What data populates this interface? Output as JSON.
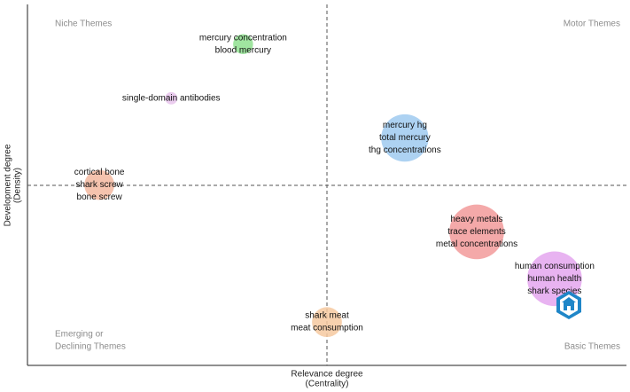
{
  "chart_data": {
    "type": "scatter",
    "title": "",
    "xlabel": [
      "Relevance degree",
      "(Centrality)"
    ],
    "ylabel": [
      "Development degree",
      "(Density)"
    ],
    "grid": false,
    "quadrants": {
      "top_left": [
        "Niche Themes"
      ],
      "top_right": [
        "Motor Themes"
      ],
      "bottom_left": [
        "Emerging or",
        "Declining Themes"
      ],
      "bottom_right": [
        "Basic Themes"
      ]
    },
    "clusters": [
      {
        "labels": [
          "mercury concentration",
          "blood mercury"
        ],
        "x": 0.36,
        "y": 0.89,
        "size": 0.05,
        "color": "#8fe08f"
      },
      {
        "labels": [
          "single-domain antibodies"
        ],
        "x": 0.24,
        "y": 0.74,
        "size": 0.005,
        "color": "#e8c4ec"
      },
      {
        "labels": [
          "mercury hg",
          "total mercury",
          "thg concentrations"
        ],
        "x": 0.63,
        "y": 0.63,
        "size": 0.6,
        "color": "#9fcaf0"
      },
      {
        "labels": [
          "cortical bone",
          "shark screw",
          "bone screw"
        ],
        "x": 0.12,
        "y": 0.5,
        "size": 0.18,
        "color": "#f3b9a0"
      },
      {
        "labels": [
          "heavy metals",
          "trace elements",
          "metal concentrations"
        ],
        "x": 0.75,
        "y": 0.37,
        "size": 0.85,
        "color": "#f29a9a"
      },
      {
        "labels": [
          "human consumption",
          "human health",
          "shark species"
        ],
        "x": 0.88,
        "y": 0.24,
        "size": 0.85,
        "color": "#e4a6ee"
      },
      {
        "labels": [
          "shark meat",
          "meat consumption"
        ],
        "x": 0.5,
        "y": 0.12,
        "size": 0.18,
        "color": "#f6c9a0"
      }
    ]
  }
}
